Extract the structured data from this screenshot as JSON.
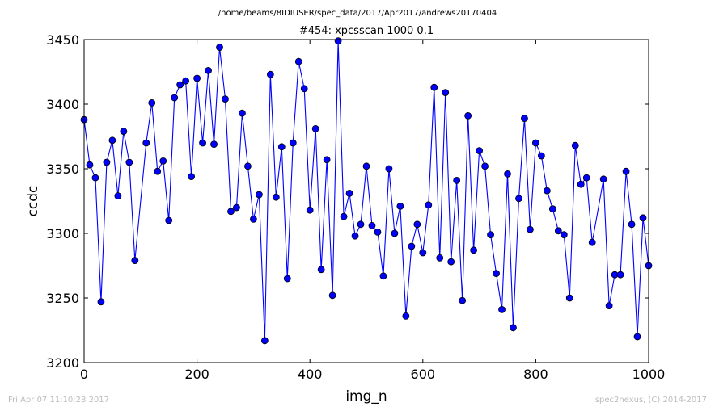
{
  "header": {
    "file_path": "/home/beams/8IDIUSER/spec_data/2017/Apr2017/andrews20170404"
  },
  "footer": {
    "timestamp": "Fri Apr 07 11:10:28 2017",
    "credit": "spec2nexus, (C) 2014-2017"
  },
  "colors": {
    "line": "#0000ff",
    "marker_fill": "#0000ff",
    "marker_edge": "#000000"
  },
  "chart_data": {
    "type": "line",
    "title": "#454: xpcsscan 1000 0.1",
    "xlabel": "img_n",
    "ylabel": "ccdc",
    "xlim": [
      0,
      1000
    ],
    "ylim": [
      3200,
      3450
    ],
    "xticks": [
      0,
      200,
      400,
      600,
      800,
      1000
    ],
    "yticks": [
      3200,
      3250,
      3300,
      3350,
      3400,
      3450
    ],
    "grid": false,
    "legend": "none",
    "series": [
      {
        "x": [
          0,
          10,
          20,
          30,
          40,
          50,
          60,
          70,
          80,
          90,
          110,
          120,
          130,
          140,
          150,
          160,
          170,
          180,
          190,
          200,
          210,
          220,
          230,
          240,
          250,
          260,
          270,
          280,
          290,
          300,
          310,
          320,
          330,
          340,
          350,
          360,
          370,
          380,
          390,
          400,
          410,
          420,
          430,
          440,
          450,
          460,
          470,
          480,
          490,
          500,
          510,
          520,
          530,
          540,
          550,
          560,
          570,
          580,
          590,
          600,
          610,
          620,
          630,
          640,
          650,
          660,
          670,
          680,
          690,
          700,
          710,
          720,
          730,
          740,
          750,
          760,
          770,
          780,
          790,
          800,
          810,
          820,
          830,
          840,
          850,
          860,
          870,
          880,
          890,
          900,
          920,
          930,
          940,
          950,
          960,
          970,
          980,
          990,
          1000
        ],
        "values": [
          3388,
          3353,
          3343,
          3247,
          3355,
          3372,
          3329,
          3379,
          3355,
          3279,
          3370,
          3401,
          3348,
          3356,
          3310,
          3405,
          3415,
          3418,
          3344,
          3420,
          3370,
          3426,
          3369,
          3444,
          3404,
          3317,
          3320,
          3393,
          3352,
          3311,
          3330,
          3217,
          3423,
          3328,
          3367,
          3265,
          3370,
          3433,
          3412,
          3318,
          3381,
          3272,
          3357,
          3252,
          3449,
          3313,
          3331,
          3298,
          3307,
          3352,
          3306,
          3301,
          3267,
          3350,
          3300,
          3321,
          3236,
          3290,
          3307,
          3285,
          3322,
          3413,
          3281,
          3409,
          3278,
          3341,
          3248,
          3391,
          3287,
          3364,
          3352,
          3299,
          3269,
          3241,
          3346,
          3227,
          3327,
          3389,
          3303,
          3370,
          3360,
          3333,
          3319,
          3302,
          3299,
          3250,
          3368,
          3338,
          3343,
          3293,
          3342,
          3244,
          3268,
          3268,
          3348,
          3307,
          3220,
          3312,
          3275
        ]
      }
    ]
  }
}
